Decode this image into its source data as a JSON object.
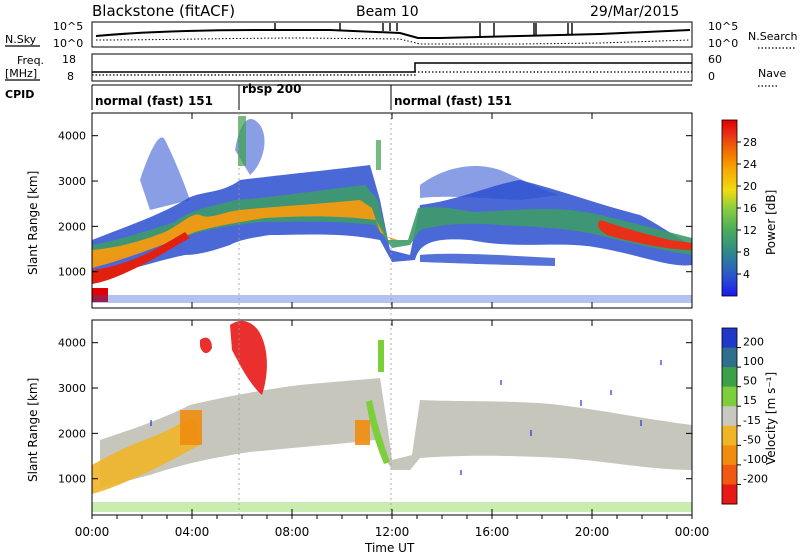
{
  "header": {
    "station": "Blackstone (fitACF)",
    "beam": "Beam 10",
    "date": "29/Mar/2015"
  },
  "panels": {
    "nsky": {
      "label": "N.Sky",
      "right_label": "N.Search",
      "ticks_left": [
        "10^5",
        "10^0"
      ],
      "ticks_right": [
        "10^5",
        "10^0"
      ]
    },
    "freq": {
      "label_line1": "Freq.",
      "label_line2": "[MHz]",
      "right_label": "Nave",
      "ticks_left": [
        "18",
        "8"
      ],
      "ticks_right": [
        "60",
        "0"
      ]
    },
    "cpid": {
      "label": "CPID",
      "segments": [
        {
          "label": "normal (fast) 151",
          "start": 0
        },
        {
          "label": "rbsp 200",
          "start": 6
        },
        {
          "label": "normal (fast) 151",
          "start": 12.5
        }
      ]
    }
  },
  "chart_data": [
    {
      "type": "heatmap",
      "name": "power",
      "ylabel": "Slant Range [km]",
      "y_ticks": [
        1000,
        2000,
        3000,
        4000
      ],
      "ylim": [
        200,
        4500
      ],
      "colorbar": {
        "label": "Power [dB]",
        "ticks": [
          "4",
          "8",
          "12",
          "16",
          "20",
          "24",
          "28"
        ],
        "colors": [
          "#1a1aee",
          "#2a58c8",
          "#2f8a8a",
          "#4cae5a",
          "#8ccf3e",
          "#f2dc10",
          "#f8a800",
          "#f07000",
          "#e83018",
          "#e00000"
        ]
      }
    },
    {
      "type": "heatmap",
      "name": "velocity",
      "ylabel": "Slant Range [km]",
      "y_ticks": [
        1000,
        2000,
        3000,
        4000
      ],
      "ylim": [
        200,
        4500
      ],
      "colorbar": {
        "label": "Velocity [m s⁻¹]",
        "ticks": [
          "200",
          "100",
          "50",
          "15",
          "-15",
          "-50",
          "-100",
          "-200"
        ],
        "colors": [
          "#2038c8",
          "#2f6e8c",
          "#3ca04a",
          "#7ccf3a",
          "#c8c8c0",
          "#f0b428",
          "#f08c10",
          "#f05a10",
          "#e81818"
        ]
      }
    }
  ],
  "time_axis": {
    "label": "Time UT",
    "ticks": [
      "00:00",
      "04:00",
      "08:00",
      "12:00",
      "16:00",
      "20:00",
      "00:00"
    ],
    "hours": [
      0,
      4,
      8,
      12,
      16,
      20,
      24
    ]
  }
}
